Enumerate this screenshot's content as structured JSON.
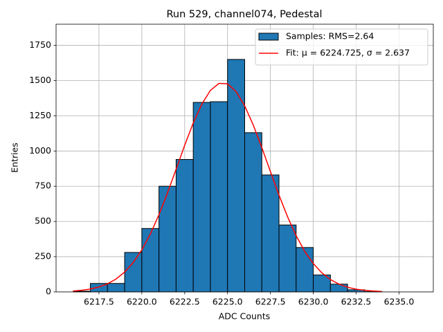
{
  "chart_data": {
    "type": "histogram",
    "title": "Run 529, channel074, Pedestal",
    "x_label": "ADC Counts",
    "y_label": "Entries",
    "bins": [
      6216,
      6217,
      6218,
      6219,
      6220,
      6221,
      6222,
      6223,
      6224,
      6225,
      6226,
      6227,
      6228,
      6229,
      6230,
      6231,
      6232,
      6233,
      6234,
      6235,
      6236
    ],
    "series": [
      {
        "type": "histogram",
        "name": "Samples: RMS=2.64",
        "color": "#1f77b4",
        "edgecolor": "#000000",
        "values": [
          5,
          60,
          60,
          280,
          450,
          750,
          940,
          1345,
          1350,
          1650,
          1130,
          830,
          475,
          315,
          120,
          55,
          15,
          2,
          0,
          0
        ]
      },
      {
        "type": "line",
        "name": "Fit: μ = 6224.725, σ = 2.637",
        "color": "#ff0000",
        "x": [
          6216,
          6216.5,
          6217,
          6217.5,
          6218,
          6218.5,
          6219,
          6219.5,
          6220,
          6220.5,
          6221,
          6221.5,
          6222,
          6222.5,
          6223,
          6223.5,
          6224,
          6224.5,
          6225,
          6225.5,
          6226,
          6226.5,
          6227,
          6227.5,
          6228,
          6228.5,
          6229,
          6229.5,
          6230,
          6230.5,
          6231,
          6231.5,
          6232,
          6232.5,
          6233,
          6233.5,
          6234
        ],
        "values": [
          6.2,
          11.5,
          20.3,
          34.8,
          57.5,
          91.6,
          140.6,
          208.5,
          298.3,
          411.5,
          547.5,
          703,
          870.7,
          1040.2,
          1199,
          1333,
          1430,
          1480,
          1477,
          1422,
          1321,
          1184,
          1024,
          854,
          687,
          533,
          399,
          288,
          201,
          135,
          87.5,
          54.8,
          33,
          19.2,
          10.8,
          5.9,
          3.1
        ]
      }
    ],
    "xlim": [
      6215,
      6237
    ],
    "ylim": [
      0,
      1900
    ],
    "xticks": [
      6217.5,
      {
        "value": 6220,
        "label": "6220.0"
      },
      6222.5,
      {
        "value": 6225,
        "label": "6225.0"
      },
      6227.5,
      {
        "value": 6230,
        "label": "6230.0"
      },
      6232.5,
      {
        "value": 6235,
        "label": "6235.0"
      }
    ],
    "yticks": [
      0,
      250,
      500,
      750,
      1000,
      1250,
      1500,
      1750
    ],
    "grid": true,
    "legend": "upper right"
  }
}
